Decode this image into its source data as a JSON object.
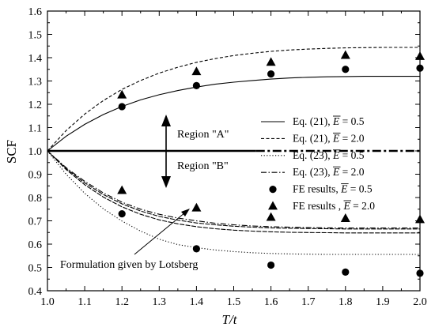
{
  "chart_data": {
    "type": "line",
    "title": "",
    "xlabel": "T/t",
    "ylabel": "SCF",
    "xlim": [
      1.0,
      2.0
    ],
    "ylim": [
      0.4,
      1.6
    ],
    "xticks": [
      "1.0",
      "1.1",
      "1.2",
      "1.3",
      "1.4",
      "1.5",
      "1.6",
      "1.7",
      "1.8",
      "1.9",
      "2.0"
    ],
    "yticks": [
      "0.4",
      "0.5",
      "0.6",
      "0.7",
      "0.8",
      "0.9",
      "1.0",
      "1.1",
      "1.2",
      "1.3",
      "1.4",
      "1.5",
      "1.6"
    ],
    "grid": false,
    "legend_position": "right",
    "x": [
      1.0,
      1.05,
      1.1,
      1.15,
      1.2,
      1.25,
      1.3,
      1.35,
      1.4,
      1.45,
      1.5,
      1.55,
      1.6,
      1.65,
      1.7,
      1.75,
      1.8,
      1.85,
      1.9,
      1.95,
      2.0
    ],
    "series": [
      {
        "name": "Eq. (21),",
        "ebar": "= 0.5",
        "style": "solid",
        "values": [
          1.0,
          1.063,
          1.114,
          1.156,
          1.191,
          1.219,
          1.241,
          1.259,
          1.274,
          1.286,
          1.295,
          1.302,
          1.308,
          1.313,
          1.316,
          1.318,
          1.319,
          1.32,
          1.32,
          1.32,
          1.32
        ]
      },
      {
        "name": "Eq. (21),",
        "ebar": "= 2.0",
        "style": "dashed",
        "values": [
          1.0,
          1.087,
          1.158,
          1.216,
          1.264,
          1.302,
          1.334,
          1.359,
          1.38,
          1.396,
          1.409,
          1.419,
          1.427,
          1.433,
          1.437,
          1.44,
          1.442,
          1.443,
          1.444,
          1.444,
          1.444
        ]
      },
      {
        "name": "Eq. (23),",
        "ebar": "= 0.5",
        "style": "dotted",
        "values": [
          1.0,
          0.9,
          0.818,
          0.752,
          0.699,
          0.656,
          0.621,
          0.598,
          0.585,
          0.575,
          0.568,
          0.563,
          0.56,
          0.558,
          0.557,
          0.556,
          0.556,
          0.556,
          0.556,
          0.556,
          0.556
        ]
      },
      {
        "name": "Eq. (23),",
        "ebar": "= 2.0",
        "style": "dashdot",
        "values": [
          1.0,
          0.928,
          0.87,
          0.82,
          0.78,
          0.75,
          0.728,
          0.712,
          0.7,
          0.69,
          0.683,
          0.678,
          0.675,
          0.673,
          0.671,
          0.67,
          0.669,
          0.669,
          0.669,
          0.669,
          0.669
        ]
      },
      {
        "name": "Formulation given by Lotsberg",
        "style": "mid",
        "values": [
          1.0,
          0.92,
          0.855,
          0.802,
          0.76,
          0.728,
          0.704,
          0.687,
          0.675,
          0.666,
          0.66,
          0.656,
          0.653,
          0.651,
          0.65,
          0.649,
          0.648,
          0.648,
          0.648,
          0.648,
          0.648
        ]
      },
      {
        "name": "Formulation given by Lotsberg",
        "style": "mid",
        "values": [
          1.0,
          0.924,
          0.863,
          0.813,
          0.773,
          0.742,
          0.719,
          0.703,
          0.691,
          0.683,
          0.677,
          0.673,
          0.67,
          0.668,
          0.667,
          0.666,
          0.665,
          0.665,
          0.665,
          0.665,
          0.665
        ]
      }
    ],
    "reference_line": {
      "y": 1.0,
      "x_solid_end": 1.56
    },
    "points": [
      {
        "name": "FE results,",
        "ebar": "= 0.5",
        "marker": "circle",
        "x": [
          1.2,
          1.4,
          1.6,
          1.8,
          2.0,
          1.2,
          1.4,
          1.6,
          1.8,
          2.0
        ],
        "y": [
          1.19,
          1.28,
          1.33,
          1.35,
          1.355,
          0.73,
          0.58,
          0.51,
          0.48,
          0.475
        ]
      },
      {
        "name": "FE results ,",
        "ebar": "= 2.0",
        "marker": "triangle",
        "x": [
          1.2,
          1.4,
          1.6,
          1.8,
          2.0,
          1.2,
          1.4,
          1.6,
          1.8,
          2.0
        ],
        "y": [
          1.24,
          1.34,
          1.38,
          1.41,
          1.405,
          0.83,
          0.755,
          0.715,
          0.71,
          0.705
        ]
      }
    ],
    "legend_symbol": "E",
    "annotations": {
      "region_a": "Region \"A\"",
      "region_b": "Region \"B\"",
      "lotsberg": "Formulation given by Lotsberg"
    }
  }
}
